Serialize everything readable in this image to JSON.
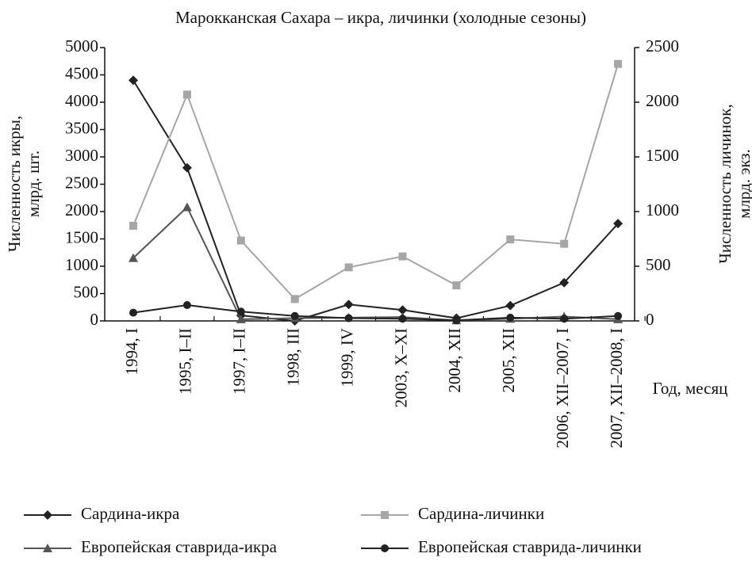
{
  "chart_data": {
    "type": "line",
    "title": "Марокканская Сахара – икра, личинки (холодные сезоны)",
    "y_label": [
      "Численность икры,",
      "млрд. шт."
    ],
    "y2_label": [
      "Численность личинок,",
      "млрд. экз."
    ],
    "x_label": "Год, месяц",
    "categories": [
      "1994, I",
      "1995, I–II",
      "1997, I–II",
      "1998, III",
      "1999, IV",
      "2003, X–XI",
      "2004, XII",
      "2005, XII",
      "2006, XII–2007, I",
      "2007, XII–2008, I"
    ],
    "ylim": [
      0,
      5000
    ],
    "yticks": [
      0,
      500,
      1000,
      1500,
      2000,
      2500,
      3000,
      3500,
      4000,
      4500,
      5000
    ],
    "y2lim": [
      0,
      2500
    ],
    "y2ticks": [
      0,
      500,
      1000,
      1500,
      2000,
      2500
    ],
    "series": [
      {
        "name": "Сардина-икра",
        "color": "#222222",
        "marker": "diamond",
        "values": [
          4400,
          2800,
          100,
          0,
          300,
          200,
          50,
          280,
          700,
          1780
        ]
      },
      {
        "name": "Сардина-личинки",
        "color": "#a6a6a6",
        "marker": "square",
        "axis": "y2",
        "values": [
          870,
          2070,
          735,
          200,
          490,
          590,
          325,
          745,
          705,
          2350
        ]
      },
      {
        "name": "Европейская ставрида-икра",
        "color": "#555555",
        "marker": "triangle",
        "values": [
          1150,
          2080,
          30,
          50,
          60,
          70,
          10,
          40,
          80,
          30
        ]
      },
      {
        "name": "Европейская ставрида-личинки",
        "color": "#222222",
        "marker": "circle",
        "axis": "y2",
        "values": [
          75,
          145,
          85,
          45,
          25,
          20,
          5,
          30,
          20,
          45
        ]
      }
    ]
  }
}
